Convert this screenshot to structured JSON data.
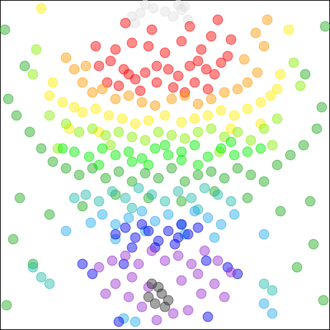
{
  "chart_data": {
    "type": "scatter",
    "title": "",
    "xlabel": "",
    "ylabel": "",
    "xlim": [
      -1,
      1
    ],
    "ylim": [
      -1,
      1
    ],
    "grid": false,
    "legend": "none",
    "axes_visible": false,
    "marker": "circle",
    "opacity": 0.45,
    "series": [
      {
        "color": "#e0e0e0",
        "x": [
          -0.2,
          -0.15,
          -0.12,
          -0.07,
          0.0,
          0.05,
          0.1,
          0.14,
          -0.18,
          0.08,
          0.12
        ],
        "y": [
          0.9,
          0.92,
          0.98,
          0.95,
          0.93,
          0.9,
          0.94,
          0.88,
          0.86,
          0.98,
          0.96
        ]
      },
      {
        "color": "#ff0000",
        "x": [
          -0.4,
          -0.33,
          -0.25,
          -0.22,
          -0.18,
          -0.12,
          -0.05,
          0.02,
          0.08,
          0.15,
          0.2,
          0.25,
          0.3,
          0.34,
          0.38,
          -0.3,
          -0.2,
          -0.1,
          0.0,
          0.1,
          0.22,
          0.28,
          -0.35,
          -0.28,
          -0.15,
          -0.05,
          0.05,
          0.12,
          0.18,
          0.26,
          -0.24,
          -0.08,
          0.15,
          0.32,
          -0.42,
          0.4
        ],
        "y": [
          0.6,
          0.63,
          0.58,
          0.55,
          0.52,
          0.56,
          0.6,
          0.58,
          0.54,
          0.6,
          0.63,
          0.58,
          0.55,
          0.62,
          0.66,
          0.7,
          0.74,
          0.72,
          0.68,
          0.75,
          0.7,
          0.78,
          0.5,
          0.48,
          0.45,
          0.5,
          0.47,
          0.44,
          0.5,
          0.46,
          0.86,
          0.82,
          0.84,
          0.88,
          0.72,
          0.76
        ]
      },
      {
        "color": "#ff9900",
        "x": [
          -0.55,
          -0.5,
          -0.44,
          -0.38,
          -0.3,
          -0.22,
          -0.14,
          -0.06,
          0.04,
          0.12,
          0.2,
          0.28,
          0.36,
          0.44,
          0.5,
          0.56,
          -0.48,
          0.48,
          0.6,
          -0.6,
          0.62,
          0.55
        ],
        "y": [
          0.58,
          0.5,
          0.44,
          0.46,
          0.4,
          0.42,
          0.38,
          0.36,
          0.4,
          0.42,
          0.37,
          0.4,
          0.44,
          0.46,
          0.5,
          0.56,
          0.6,
          0.64,
          0.72,
          0.65,
          0.88,
          0.8
        ]
      },
      {
        "color": "#ffee00",
        "x": [
          -0.7,
          -0.62,
          -0.55,
          -0.5,
          -0.42,
          -0.34,
          -0.26,
          -0.18,
          -0.1,
          0.0,
          0.1,
          0.18,
          0.26,
          0.34,
          0.42,
          0.5,
          0.58,
          0.64,
          0.7,
          -0.68,
          0.68,
          -0.75,
          0.75,
          -0.58,
          0.58,
          -0.4,
          0.4
        ],
        "y": [
          0.42,
          0.38,
          0.35,
          0.32,
          0.34,
          0.3,
          0.28,
          0.25,
          0.27,
          0.3,
          0.26,
          0.28,
          0.3,
          0.33,
          0.3,
          0.34,
          0.38,
          0.42,
          0.55,
          0.5,
          0.46,
          0.95,
          0.82,
          0.22,
          0.25,
          0.2,
          0.22
        ]
      },
      {
        "color": "#88ee00",
        "x": [
          -0.7,
          -0.6,
          -0.52,
          -0.44,
          -0.36,
          -0.28,
          -0.2,
          -0.12,
          -0.04,
          0.04,
          0.12,
          0.2,
          0.28,
          0.36,
          0.44,
          0.52,
          0.6,
          0.68,
          -0.78,
          0.78,
          -0.8,
          0.82,
          -0.65,
          0.65,
          -0.33,
          0.33
        ],
        "y": [
          0.3,
          0.25,
          0.2,
          0.22,
          0.18,
          0.2,
          0.17,
          0.15,
          0.2,
          0.18,
          0.16,
          0.2,
          0.22,
          0.17,
          0.2,
          0.15,
          0.22,
          0.28,
          0.7,
          0.62,
          0.55,
          0.48,
          0.1,
          0.12,
          0.12,
          0.08
        ]
      },
      {
        "color": "#00ee00",
        "x": [
          -0.62,
          -0.55,
          -0.46,
          -0.38,
          -0.3,
          -0.22,
          -0.14,
          -0.06,
          0.02,
          0.1,
          0.18,
          0.26,
          0.34,
          0.42,
          0.5,
          0.58,
          -0.4,
          -0.2,
          0.0,
          0.2,
          0.4,
          -0.1,
          0.1
        ],
        "y": [
          0.1,
          0.08,
          0.05,
          0.1,
          0.06,
          0.08,
          0.04,
          0.1,
          0.06,
          0.08,
          0.12,
          0.05,
          0.1,
          0.06,
          0.08,
          0.1,
          0.0,
          0.02,
          0.12,
          0.0,
          0.14,
          0.0,
          0.03
        ]
      },
      {
        "color": "#22aa22",
        "x": [
          -0.95,
          -0.9,
          -0.82,
          -0.75,
          -0.68,
          -0.6,
          -0.52,
          -0.44,
          -0.36,
          -0.28,
          -0.2,
          -0.12,
          -0.04,
          0.04,
          0.12,
          0.2,
          0.28,
          0.36,
          0.44,
          0.52,
          0.6,
          0.68,
          0.76,
          0.84,
          0.92,
          0.95,
          -0.98,
          0.98,
          -0.88,
          0.88,
          -0.7,
          0.7,
          -0.5,
          0.5,
          -0.3,
          0.3,
          -0.92,
          0.9,
          -0.8,
          0.8,
          -0.96,
          0.96,
          -0.85,
          0.85,
          -0.1,
          0.1
        ],
        "y": [
          0.4,
          0.3,
          0.2,
          0.1,
          0.02,
          -0.02,
          -0.06,
          -0.02,
          -0.08,
          -0.04,
          -0.1,
          -0.05,
          -0.08,
          -0.02,
          -0.1,
          -0.06,
          -0.04,
          -0.08,
          -0.02,
          -0.06,
          -0.1,
          0.0,
          0.06,
          0.12,
          0.22,
          0.35,
          0.82,
          0.84,
          -0.2,
          -0.22,
          -0.3,
          -0.28,
          -0.25,
          -0.2,
          -0.18,
          -0.16,
          -0.45,
          -0.48,
          -0.6,
          -0.62,
          -0.85,
          -0.82,
          0.6,
          0.55,
          -0.2,
          -0.22
        ]
      },
      {
        "color": "#22bbaa",
        "x": [
          -0.55,
          -0.48,
          -0.4,
          -0.32,
          -0.24,
          -0.16,
          -0.08,
          0.0,
          0.08,
          0.16,
          0.24,
          0.32,
          0.4,
          -0.8,
          -0.75,
          -0.7,
          0.6,
          0.65,
          -0.2,
          0.2
        ],
        "y": [
          -0.2,
          -0.18,
          -0.22,
          -0.16,
          -0.2,
          -0.14,
          -0.18,
          -0.22,
          -0.16,
          -0.2,
          -0.14,
          -0.18,
          -0.22,
          -0.62,
          -0.68,
          -0.72,
          -0.72,
          -0.76,
          -0.26,
          -0.27
        ]
      },
      {
        "color": "#22aaee",
        "x": [
          -0.45,
          -0.38,
          -0.3,
          -0.22,
          -0.14,
          -0.06,
          0.02,
          0.1,
          0.18,
          0.26,
          0.34,
          0.42,
          -0.3,
          0.3,
          -0.12,
          0.12,
          -0.6,
          0.6,
          -0.18,
          -0.25,
          0.6,
          0.65
        ],
        "y": [
          -0.35,
          -0.3,
          -0.36,
          -0.32,
          -0.28,
          -0.34,
          -0.3,
          -0.36,
          -0.28,
          -0.32,
          -0.36,
          -0.3,
          -0.45,
          -0.44,
          -0.4,
          -0.42,
          -0.4,
          -0.42,
          -0.95,
          -0.93,
          -0.84,
          -0.9
        ]
      },
      {
        "color": "#0000ee",
        "x": [
          -0.3,
          -0.24,
          -0.18,
          -0.1,
          -0.04,
          0.02,
          0.08,
          0.14,
          0.2,
          -0.2,
          -0.06,
          0.06,
          -0.14,
          0.1,
          -0.25,
          0.25,
          -0.5,
          -0.44,
          0.38,
          0.44,
          -0.28,
          0.26
        ],
        "y": [
          -0.42,
          -0.38,
          -0.44,
          -0.4,
          -0.46,
          -0.4,
          -0.44,
          -0.42,
          -0.38,
          -0.5,
          -0.5,
          -0.48,
          -0.36,
          -0.36,
          -0.6,
          -0.58,
          -0.6,
          -0.66,
          -0.62,
          -0.66,
          -0.95,
          -0.92
        ]
      },
      {
        "color": "#9933cc",
        "x": [
          -0.4,
          -0.32,
          -0.24,
          -0.16,
          -0.08,
          0.0,
          0.08,
          0.16,
          0.24,
          0.32,
          0.4,
          -0.3,
          -0.2,
          -0.1,
          0.1,
          0.2,
          0.3,
          -0.22,
          0.22,
          -0.36,
          0.36,
          -0.14,
          0.14,
          -0.05,
          0.05
        ],
        "y": [
          -0.62,
          -0.58,
          -0.55,
          -0.6,
          -0.52,
          -0.58,
          -0.55,
          -0.6,
          -0.52,
          -0.58,
          -0.65,
          -0.72,
          -0.68,
          -0.74,
          -0.7,
          -0.66,
          -0.72,
          -0.8,
          -0.78,
          -0.78,
          -0.8,
          -0.86,
          -0.88,
          -0.94,
          -0.9
        ]
      },
      {
        "color": "#333333",
        "x": [
          -0.1,
          -0.06,
          -0.02,
          0.02,
          -0.08,
          0.0,
          -0.04
        ],
        "y": [
          -0.8,
          -0.84,
          -0.78,
          -0.82,
          -0.72,
          -0.86,
          -0.74
        ]
      }
    ]
  }
}
